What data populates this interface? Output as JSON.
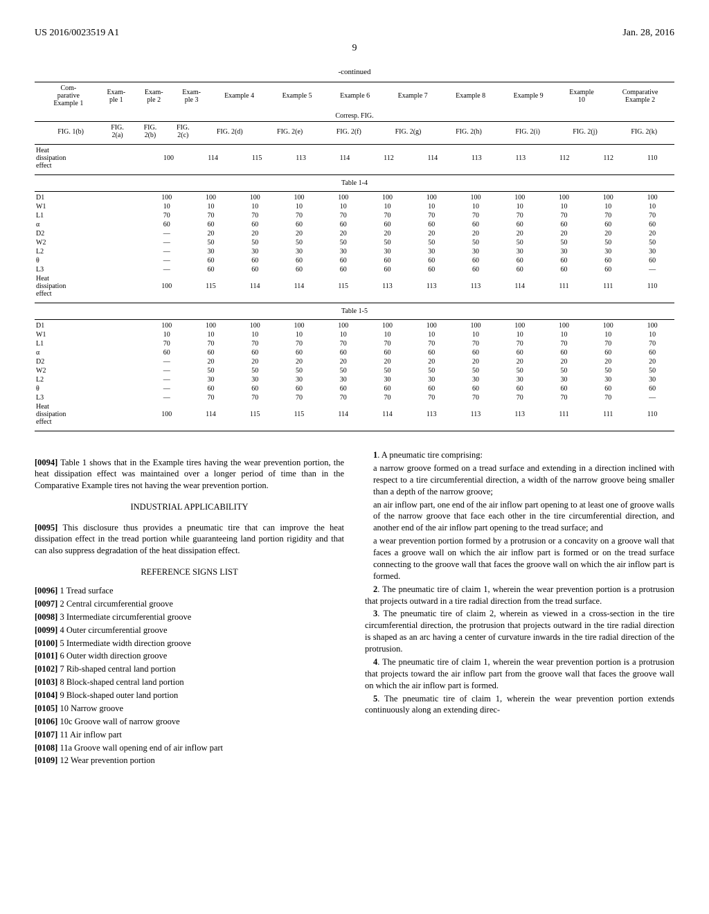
{
  "header": {
    "left": "US 2016/0023519 A1",
    "right": "Jan. 28, 2016",
    "page": "9"
  },
  "continued": "-continued",
  "tableStyle": {
    "font_size": 10,
    "text_color": "#000000",
    "border_color": "#000000",
    "row_label_align": "left",
    "cell_align": "center"
  },
  "tableHeaderRow1": [
    "",
    "Com-\nparative\nExample 1",
    "Exam-\nple 1",
    "Exam-\nple 2",
    "Exam-\nple 3",
    "Example 4",
    "Example 5",
    "Example 6",
    "Example 7",
    "Example 8",
    "Example 9",
    "Example\n10",
    "Comparative\nExample 2"
  ],
  "tableHeaderCorresp": "Corresp. FIG.",
  "tableHeaderRow2": [
    "",
    "FIG. 1(b)",
    "FIG.\n2(a)",
    "FIG.\n2(b)",
    "FIG.\n2(c)",
    "FIG. 2(d)",
    "FIG. 2(e)",
    "FIG. 2(f)",
    "FIG. 2(g)",
    "FIG. 2(h)",
    "FIG. 2(i)",
    "FIG. 2(j)",
    "FIG. 2(k)"
  ],
  "heatRow": [
    "Heat\ndissipation\neffect",
    "100",
    "114",
    "115",
    "113",
    "114",
    "112",
    "114",
    "113",
    "113",
    "112",
    "112",
    "110"
  ],
  "table14": {
    "label": "Table 1-4",
    "rows": [
      [
        "D1",
        "100",
        "100",
        "100",
        "100",
        "100",
        "100",
        "100",
        "100",
        "100",
        "100",
        "100",
        "100"
      ],
      [
        "W1",
        "10",
        "10",
        "10",
        "10",
        "10",
        "10",
        "10",
        "10",
        "10",
        "10",
        "10",
        "10"
      ],
      [
        "L1",
        "70",
        "70",
        "70",
        "70",
        "70",
        "70",
        "70",
        "70",
        "70",
        "70",
        "70",
        "70"
      ],
      [
        "α",
        "60",
        "60",
        "60",
        "60",
        "60",
        "60",
        "60",
        "60",
        "60",
        "60",
        "60",
        "60"
      ],
      [
        "D2",
        "—",
        "20",
        "20",
        "20",
        "20",
        "20",
        "20",
        "20",
        "20",
        "20",
        "20",
        "20"
      ],
      [
        "W2",
        "—",
        "50",
        "50",
        "50",
        "50",
        "50",
        "50",
        "50",
        "50",
        "50",
        "50",
        "50"
      ],
      [
        "L2",
        "—",
        "30",
        "30",
        "30",
        "30",
        "30",
        "30",
        "30",
        "30",
        "30",
        "30",
        "30"
      ],
      [
        "θ",
        "—",
        "60",
        "60",
        "60",
        "60",
        "60",
        "60",
        "60",
        "60",
        "60",
        "60",
        "60"
      ],
      [
        "L3",
        "—",
        "60",
        "60",
        "60",
        "60",
        "60",
        "60",
        "60",
        "60",
        "60",
        "60",
        "—"
      ],
      [
        "Heat\ndissipation\neffect",
        "100",
        "115",
        "114",
        "114",
        "115",
        "113",
        "113",
        "113",
        "114",
        "111",
        "111",
        "110"
      ]
    ]
  },
  "table15": {
    "label": "Table 1-5",
    "rows": [
      [
        "D1",
        "100",
        "100",
        "100",
        "100",
        "100",
        "100",
        "100",
        "100",
        "100",
        "100",
        "100",
        "100"
      ],
      [
        "W1",
        "10",
        "10",
        "10",
        "10",
        "10",
        "10",
        "10",
        "10",
        "10",
        "10",
        "10",
        "10"
      ],
      [
        "L1",
        "70",
        "70",
        "70",
        "70",
        "70",
        "70",
        "70",
        "70",
        "70",
        "70",
        "70",
        "70"
      ],
      [
        "α",
        "60",
        "60",
        "60",
        "60",
        "60",
        "60",
        "60",
        "60",
        "60",
        "60",
        "60",
        "60"
      ],
      [
        "D2",
        "—",
        "20",
        "20",
        "20",
        "20",
        "20",
        "20",
        "20",
        "20",
        "20",
        "20",
        "20"
      ],
      [
        "W2",
        "—",
        "50",
        "50",
        "50",
        "50",
        "50",
        "50",
        "50",
        "50",
        "50",
        "50",
        "50"
      ],
      [
        "L2",
        "—",
        "30",
        "30",
        "30",
        "30",
        "30",
        "30",
        "30",
        "30",
        "30",
        "30",
        "30"
      ],
      [
        "θ",
        "—",
        "60",
        "60",
        "60",
        "60",
        "60",
        "60",
        "60",
        "60",
        "60",
        "60",
        "60"
      ],
      [
        "L3",
        "—",
        "70",
        "70",
        "70",
        "70",
        "70",
        "70",
        "70",
        "70",
        "70",
        "70",
        "—"
      ],
      [
        "Heat\ndissipation\neffect",
        "100",
        "114",
        "115",
        "115",
        "114",
        "114",
        "113",
        "113",
        "113",
        "111",
        "111",
        "110"
      ]
    ]
  },
  "leftCol": {
    "p0094": "[0094]",
    "p0094text": " Table 1 shows that in the Example tires having the wear prevention portion, the heat dissipation effect was maintained over a longer period of time than in the Comparative Example tires not having the wear prevention portion.",
    "industrialHead": "INDUSTRIAL APPLICABILITY",
    "p0095": "[0095]",
    "p0095text": " This disclosure thus provides a pneumatic tire that can improve the heat dissipation effect in the tread portion while guaranteeing land portion rigidity and that can also suppress degradation of the heat dissipation effect.",
    "refHead": "REFERENCE SIGNS LIST",
    "refs": [
      {
        "n": "[0096]",
        "t": "1 Tread surface"
      },
      {
        "n": "[0097]",
        "t": "2 Central circumferential groove"
      },
      {
        "n": "[0098]",
        "t": "3 Intermediate circumferential groove"
      },
      {
        "n": "[0099]",
        "t": "4 Outer circumferential groove"
      },
      {
        "n": "[0100]",
        "t": "5 Intermediate width direction groove"
      },
      {
        "n": "[0101]",
        "t": "6 Outer width direction groove"
      },
      {
        "n": "[0102]",
        "t": "7 Rib-shaped central land portion"
      },
      {
        "n": "[0103]",
        "t": "8 Block-shaped central land portion"
      },
      {
        "n": "[0104]",
        "t": "9 Block-shaped outer land portion"
      },
      {
        "n": "[0105]",
        "t": "10 Narrow groove"
      },
      {
        "n": "[0106]",
        "t": "10c Groove wall of narrow groove"
      },
      {
        "n": "[0107]",
        "t": "11 Air inflow part"
      },
      {
        "n": "[0108]",
        "t": "11a Groove wall opening end of air inflow part"
      },
      {
        "n": "[0109]",
        "t": "12 Wear prevention portion"
      }
    ]
  },
  "rightCol": {
    "c1": "1",
    "c1lead": ". A pneumatic tire comprising:",
    "c1a": "a narrow groove formed on a tread surface and extending in a direction inclined with respect to a tire circumferential direction, a width of the narrow groove being smaller than a depth of the narrow groove;",
    "c1b": "an air inflow part, one end of the air inflow part opening to at least one of groove walls of the narrow groove that face each other in the tire circumferential direction, and another end of the air inflow part opening to the tread surface; and",
    "c1c": "a wear prevention portion formed by a protrusion or a concavity on a groove wall that faces a groove wall on which the air inflow part is formed or on the tread surface connecting to the groove wall that faces the groove wall on which the air inflow part is formed.",
    "c2n": "2",
    "c2": ". The pneumatic tire of claim 1, wherein the wear prevention portion is a protrusion that projects outward in a tire radial direction from the tread surface.",
    "c3n": "3",
    "c3": ". The pneumatic tire of claim 2, wherein as viewed in a cross-section in the tire circumferential direction, the protrusion that projects outward in the tire radial direction is shaped as an arc having a center of curvature inwards in the tire radial direction of the protrusion.",
    "c4n": "4",
    "c4": ". The pneumatic tire of claim 1, wherein the wear prevention portion is a protrusion that projects toward the air inflow part from the groove wall that faces the groove wall on which the air inflow part is formed.",
    "c5n": "5",
    "c5": ". The pneumatic tire of claim 1, wherein the wear prevention portion extends continuously along an extending direc-"
  }
}
